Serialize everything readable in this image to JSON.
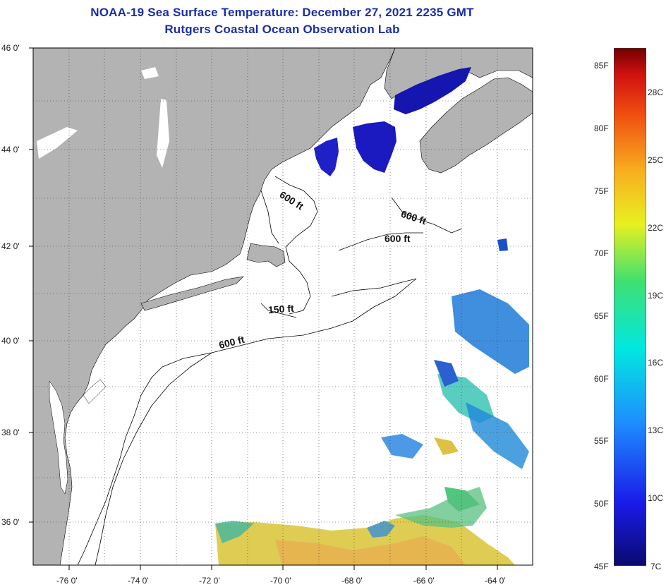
{
  "header": {
    "title_line1": "NOAA-19 Sea Surface Temperature:  December 27, 2021 2235 GMT",
    "title_line2": "Rutgers Coastal Ocean Observation Lab"
  },
  "axes": {
    "lat_labels": [
      "46 0'",
      "44 0'",
      "42 0'",
      "40 0'",
      "38 0'",
      "36 0'"
    ],
    "lon_labels": [
      "-76 0'",
      "-74 0'",
      "-72 0'",
      "-70 0'",
      "-68 0'",
      "-66 0'",
      "-64 0'"
    ]
  },
  "contours": [
    "600 ft",
    "600 ft",
    "600 ft",
    "150 ft",
    "600 ft"
  ],
  "colorbar": {
    "fahrenheit": [
      "85F",
      "80F",
      "75F",
      "70F",
      "65F",
      "60F",
      "55F",
      "50F",
      "45F"
    ],
    "celsius": [
      "28C",
      "25C",
      "22C",
      "19C",
      "16C",
      "13C",
      "10C",
      "7C"
    ]
  },
  "colors": {
    "land": "#b3b3b3",
    "title": "#1a2fa8",
    "cold": "#1010a8",
    "warm": "#e8c030"
  }
}
